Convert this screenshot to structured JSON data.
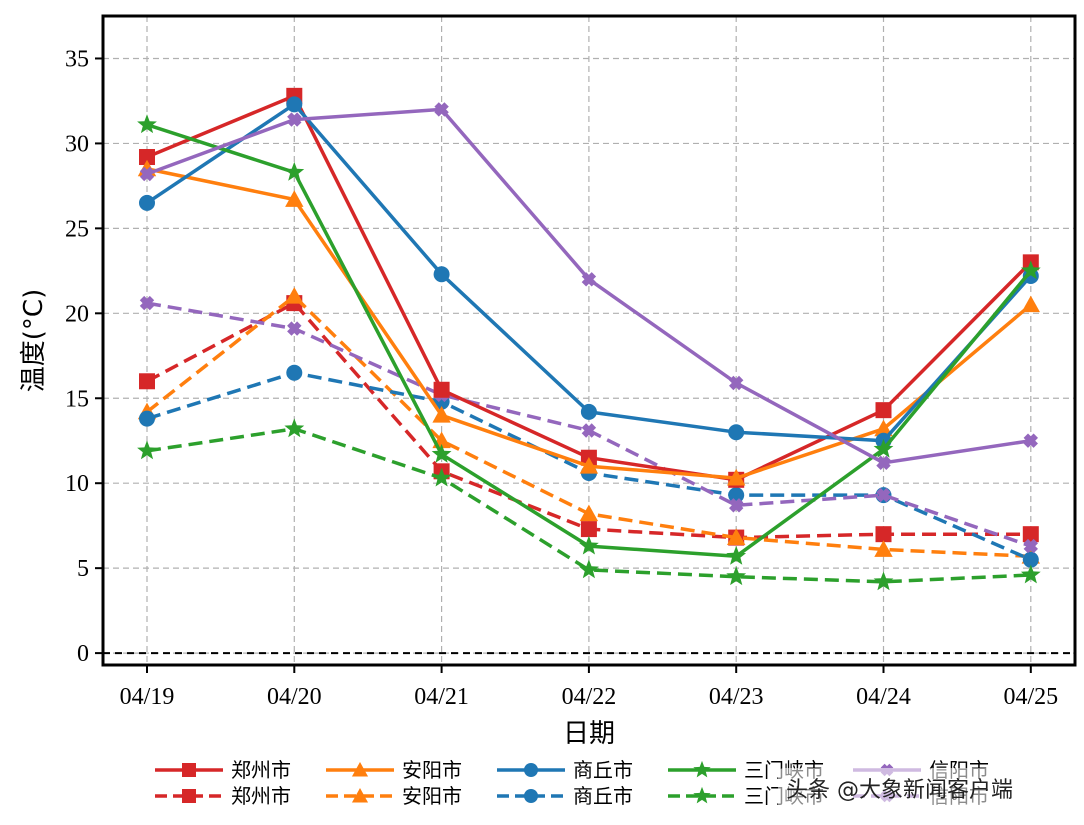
{
  "chart_data": {
    "type": "line",
    "xlabel": "日期",
    "ylabel": "温度(°C)",
    "categories": [
      "04/19",
      "04/20",
      "04/21",
      "04/22",
      "04/23",
      "04/24",
      "04/25"
    ],
    "ylim": [
      -0.7,
      37.5
    ],
    "yticks": [
      0,
      5,
      10,
      15,
      20,
      25,
      30,
      35
    ],
    "grid": true,
    "reference_line": {
      "y": 0,
      "style": "dashed",
      "color": "#000000"
    },
    "legend_placement": "bottom",
    "series": [
      {
        "name": "郑州市",
        "style": "solid",
        "marker": "square",
        "color": "#d62728",
        "values": [
          29.2,
          32.8,
          15.5,
          11.5,
          10.2,
          14.3,
          23.0
        ]
      },
      {
        "name": "安阳市",
        "style": "solid",
        "marker": "triangle",
        "color": "#ff7f0e",
        "values": [
          28.5,
          26.7,
          14.0,
          11.0,
          10.3,
          13.2,
          20.5
        ]
      },
      {
        "name": "商丘市",
        "style": "solid",
        "marker": "circle",
        "color": "#1f77b4",
        "values": [
          26.5,
          32.3,
          22.3,
          14.2,
          13.0,
          12.5,
          22.2
        ]
      },
      {
        "name": "三门峡市",
        "style": "solid",
        "marker": "star",
        "color": "#2ca02c",
        "values": [
          31.1,
          28.3,
          11.7,
          6.3,
          5.7,
          12.0,
          22.5
        ]
      },
      {
        "name": "信阳市",
        "style": "solid",
        "marker": "x",
        "color": "#9467bd",
        "values": [
          28.2,
          31.4,
          32.0,
          22.0,
          15.9,
          11.2,
          12.5
        ]
      },
      {
        "name": "郑州市",
        "style": "dashed",
        "marker": "square",
        "color": "#d62728",
        "values": [
          16.0,
          20.6,
          10.7,
          7.3,
          6.8,
          7.0,
          7.0
        ]
      },
      {
        "name": "安阳市",
        "style": "dashed",
        "marker": "triangle",
        "color": "#ff7f0e",
        "values": [
          14.2,
          21.0,
          12.5,
          8.2,
          6.8,
          6.1,
          5.7
        ]
      },
      {
        "name": "商丘市",
        "style": "dashed",
        "marker": "circle",
        "color": "#1f77b4",
        "values": [
          13.8,
          16.5,
          14.8,
          10.6,
          9.3,
          9.3,
          5.5
        ]
      },
      {
        "name": "三门峡市",
        "style": "dashed",
        "marker": "star",
        "color": "#2ca02c",
        "values": [
          11.9,
          13.2,
          10.3,
          4.9,
          4.5,
          4.2,
          4.6
        ]
      },
      {
        "name": "信阳市",
        "style": "dashed",
        "marker": "x",
        "color": "#9467bd",
        "values": [
          20.6,
          19.1,
          15.2,
          13.1,
          8.7,
          9.3,
          6.3
        ]
      }
    ]
  },
  "watermark": {
    "text": "头条 @大象新闻客户端"
  }
}
